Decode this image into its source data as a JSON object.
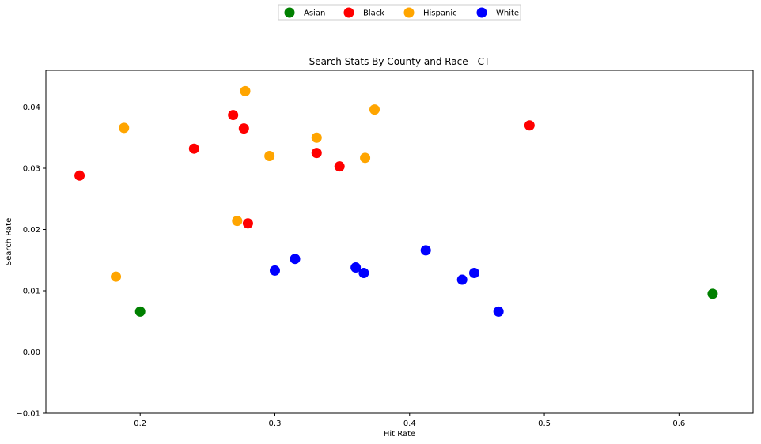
{
  "chart_data": {
    "type": "scatter",
    "title": "Search Stats By County and Race - CT",
    "xlabel": "Hit Rate",
    "ylabel": "Search Rate",
    "xlim": [
      0.13,
      0.655
    ],
    "ylim": [
      -0.01,
      0.046
    ],
    "x_ticks": [
      {
        "value": 0.2,
        "label": "0.2"
      },
      {
        "value": 0.3,
        "label": "0.3"
      },
      {
        "value": 0.4,
        "label": "0.4"
      },
      {
        "value": 0.5,
        "label": "0.5"
      },
      {
        "value": 0.6,
        "label": "0.6"
      }
    ],
    "y_ticks": [
      {
        "value": -0.01,
        "label": "−0.01"
      },
      {
        "value": 0.0,
        "label": "0.00"
      },
      {
        "value": 0.01,
        "label": "0.01"
      },
      {
        "value": 0.02,
        "label": "0.02"
      },
      {
        "value": 0.03,
        "label": "0.03"
      },
      {
        "value": 0.04,
        "label": "0.04"
      }
    ],
    "grid": false,
    "legend_position": "top-center",
    "series": [
      {
        "name": "Asian",
        "color": "#008000",
        "points": [
          [
            0.2,
            0.0066
          ],
          [
            0.625,
            0.0095
          ]
        ]
      },
      {
        "name": "Black",
        "color": "#ff0000",
        "points": [
          [
            0.155,
            0.0288
          ],
          [
            0.24,
            0.0332
          ],
          [
            0.269,
            0.0387
          ],
          [
            0.277,
            0.0365
          ],
          [
            0.28,
            0.021
          ],
          [
            0.331,
            0.0325
          ],
          [
            0.348,
            0.0303
          ],
          [
            0.489,
            0.037
          ]
        ]
      },
      {
        "name": "Hispanic",
        "color": "#ffa500",
        "points": [
          [
            0.182,
            0.0123
          ],
          [
            0.188,
            0.0366
          ],
          [
            0.272,
            0.0214
          ],
          [
            0.278,
            0.0426
          ],
          [
            0.296,
            0.032
          ],
          [
            0.331,
            0.035
          ],
          [
            0.367,
            0.0317
          ],
          [
            0.374,
            0.0396
          ]
        ]
      },
      {
        "name": "White",
        "color": "#0000ff",
        "points": [
          [
            0.3,
            0.0133
          ],
          [
            0.315,
            0.0152
          ],
          [
            0.36,
            0.0138
          ],
          [
            0.366,
            0.0129
          ],
          [
            0.412,
            0.0166
          ],
          [
            0.439,
            0.0118
          ],
          [
            0.448,
            0.0129
          ],
          [
            0.466,
            0.0066
          ]
        ]
      }
    ]
  }
}
